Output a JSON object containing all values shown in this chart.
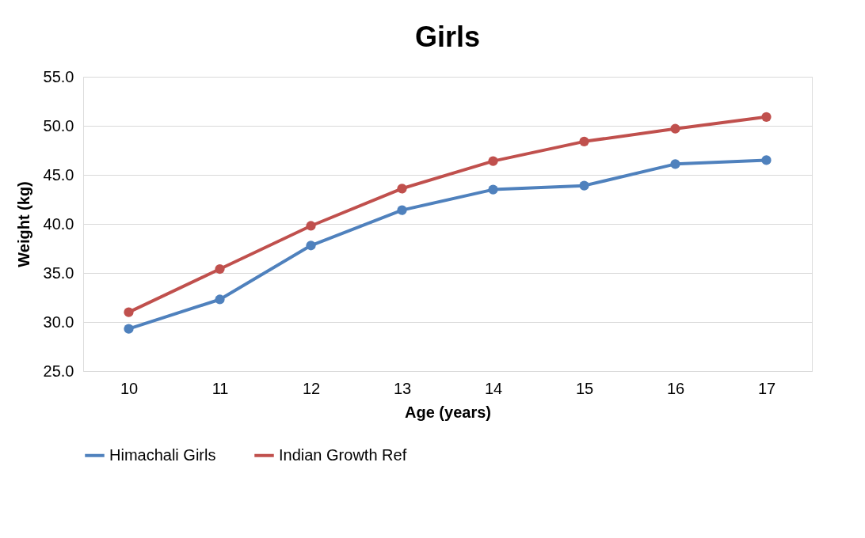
{
  "chart_data": {
    "type": "line",
    "title": "Girls",
    "xlabel": "Age (years)",
    "ylabel": "Weight (kg)",
    "categories": [
      "10",
      "11",
      "12",
      "13",
      "14",
      "15",
      "16",
      "17"
    ],
    "series": [
      {
        "name": "Himachali Girls",
        "color": "#4f81bd",
        "values": [
          29.3,
          32.3,
          37.8,
          41.4,
          43.5,
          43.9,
          46.1,
          46.5
        ]
      },
      {
        "name": "Indian Growth Ref",
        "color": "#c0504d",
        "values": [
          31.0,
          35.4,
          39.8,
          43.6,
          46.4,
          48.4,
          49.7,
          50.9
        ]
      }
    ],
    "ylim": [
      25,
      55
    ],
    "yticks": [
      {
        "value": 25,
        "label": "25.0"
      },
      {
        "value": 30,
        "label": "30.0"
      },
      {
        "value": 35,
        "label": "35.0"
      },
      {
        "value": 40,
        "label": "40.0"
      },
      {
        "value": 45,
        "label": "45.0"
      },
      {
        "value": 50,
        "label": "50.0"
      },
      {
        "value": 55,
        "label": "55.0"
      }
    ],
    "grid": "y",
    "legend": "bottom",
    "marker": "circle",
    "line_style": "solid"
  }
}
